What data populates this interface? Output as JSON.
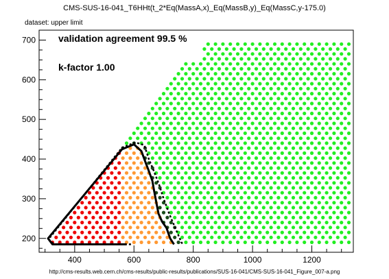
{
  "header": {
    "title": "CMS-SUS-16-041_T6HHt(t_2*Eq(MassA,x)_Eq(MassB,y)_Eq(MassC,y-175.0)",
    "dataset": "dataset: upper limit"
  },
  "annotations": {
    "agreement": "validation agreement 99.5 %",
    "kfactor": "k-factor 1.00"
  },
  "footer": {
    "url": "http://cms-results.web.cern.ch/cms-results/public-results/publications/SUS-16-041/CMS-SUS-16-041_Figure_007-a.png"
  },
  "colors": {
    "excluded": "#ee0000",
    "excluded_disagree": "#ff9933",
    "allowed_disagree": "#1a4d1a",
    "allowed": "#22ee22"
  },
  "chart_data": {
    "type": "scatter",
    "xlim": [
      280,
      1340
    ],
    "ylim": [
      165,
      725
    ],
    "x_ticks": [
      400,
      600,
      800,
      1000,
      1200
    ],
    "y_ticks": [
      200,
      300,
      400,
      500,
      600,
      700
    ],
    "grid": false,
    "grid_points": {
      "x_range": [
        325,
        1325
      ],
      "y_range": [
        190,
        700
      ],
      "triangle_constraint": "y <= x - 135"
    },
    "categories": [
      "excluded",
      "excluded_disagree",
      "allowed_disagree",
      "allowed"
    ],
    "boundaries": {
      "observed_exclusion_solid": [
        [
          575,
          185
        ],
        [
          325,
          185
        ],
        [
          310,
          200
        ],
        [
          560,
          425
        ],
        [
          600,
          437
        ],
        [
          625,
          420
        ],
        [
          640,
          390
        ],
        [
          650,
          370
        ],
        [
          662,
          345
        ],
        [
          668,
          320
        ],
        [
          675,
          292
        ],
        [
          683,
          262
        ],
        [
          695,
          242
        ],
        [
          710,
          226
        ],
        [
          722,
          200
        ],
        [
          735,
          185
        ]
      ],
      "expected_exclusion_dotted": [
        [
          590,
          185
        ],
        [
          330,
          185
        ],
        [
          312,
          198
        ],
        [
          560,
          429
        ],
        [
          605,
          442
        ],
        [
          635,
          435
        ],
        [
          650,
          400
        ],
        [
          667,
          370
        ],
        [
          685,
          335
        ],
        [
          700,
          300
        ],
        [
          720,
          260
        ],
        [
          740,
          225
        ],
        [
          760,
          190
        ],
        [
          765,
          185
        ]
      ]
    }
  }
}
